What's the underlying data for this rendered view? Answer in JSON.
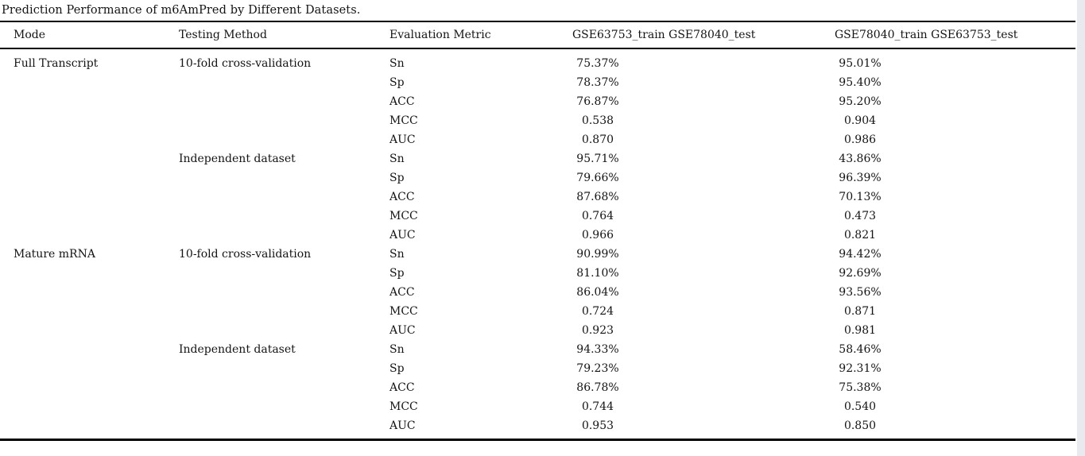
{
  "title": "Prediction Performance of m6AmPred by Different Datasets.",
  "table": {
    "header": [
      "Mode",
      "Testing Method",
      "Evaluation Metric",
      "GSE63753_train GSE78040_test",
      "GSE78040_train GSE63753_test"
    ],
    "rows": [
      [
        "Full Transcript",
        "10-fold cross-validation",
        "Sn",
        "75.37%",
        "95.01%"
      ],
      [
        "",
        "",
        "Sp",
        "78.37%",
        "95.40%"
      ],
      [
        "",
        "",
        "ACC",
        "76.87%",
        "95.20%"
      ],
      [
        "",
        "",
        "MCC",
        "0.538",
        "0.904"
      ],
      [
        "",
        "",
        "AUC",
        "0.870",
        "0.986"
      ],
      [
        "",
        "Independent dataset",
        "Sn",
        "95.71%",
        "43.86%"
      ],
      [
        "",
        "",
        "Sp",
        "79.66%",
        "96.39%"
      ],
      [
        "",
        "",
        "ACC",
        "87.68%",
        "70.13%"
      ],
      [
        "",
        "",
        "MCC",
        "0.764",
        "0.473"
      ],
      [
        "",
        "",
        "AUC",
        "0.966",
        "0.821"
      ],
      [
        "Mature mRNA",
        "10-fold cross-validation",
        "Sn",
        "90.99%",
        "94.42%"
      ],
      [
        "",
        "",
        "Sp",
        "81.10%",
        "92.69%"
      ],
      [
        "",
        "",
        "ACC",
        "86.04%",
        "93.56%"
      ],
      [
        "",
        "",
        "MCC",
        "0.724",
        "0.871"
      ],
      [
        "",
        "",
        "AUC",
        "0.923",
        "0.981"
      ],
      [
        "",
        "Independent dataset",
        "Sn",
        "94.33%",
        "58.46%"
      ],
      [
        "",
        "",
        "Sp",
        "79.23%",
        "92.31%"
      ],
      [
        "",
        "",
        "ACC",
        "86.78%",
        "75.38%"
      ],
      [
        "",
        "",
        "MCC",
        "0.744",
        "0.540"
      ],
      [
        "",
        "",
        "AUC",
        "0.953",
        "0.850"
      ]
    ]
  },
  "colors": {
    "background": "#ffffff",
    "text": "#141414",
    "rule": "#000000",
    "edge_strip": "#e8eaf0"
  }
}
